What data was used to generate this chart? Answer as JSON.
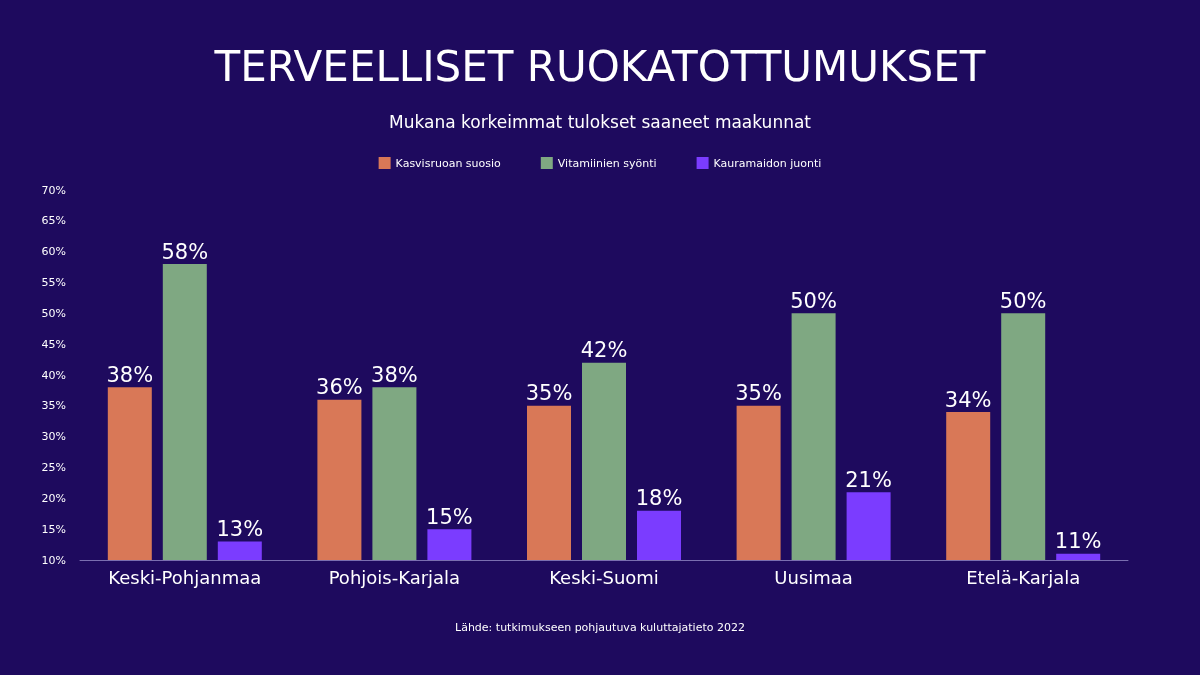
{
  "chart_data": {
    "type": "bar",
    "title": "TERVEELLISET RUOKATOTTUMUKSET",
    "subtitle": "Mukana korkeimmat tulokset saaneet maakunnat",
    "categories": [
      "Keski-Pohjanmaa",
      "Pohjois-Karjala",
      "Keski-Suomi",
      "Uusimaa",
      "Etelä-Karjala"
    ],
    "series": [
      {
        "name": "Kasvisruoan suosio",
        "color": "#d97857",
        "values": [
          38,
          36,
          35,
          35,
          34
        ],
        "value_labels": [
          "38%",
          "36%",
          "35%",
          "35%",
          "34%"
        ]
      },
      {
        "name": "Vitamiinien syönti",
        "color": "#7fa882",
        "values": [
          58,
          38,
          42,
          50,
          50
        ],
        "value_labels": [
          "58%",
          "38%",
          "42%",
          "50%",
          "50%"
        ]
      },
      {
        "name": "Kauramaidon juonti",
        "color": "#7b3cff",
        "values": [
          13,
          15,
          18,
          21,
          11
        ],
        "value_labels": [
          "13%",
          "15%",
          "18%",
          "21%",
          "11%"
        ]
      }
    ],
    "ylim": [
      10,
      70
    ],
    "yticks": [
      {
        "value": 10,
        "label": "10%"
      },
      {
        "value": 15,
        "label": "15%"
      },
      {
        "value": 20,
        "label": "20%"
      },
      {
        "value": 25,
        "label": "25%"
      },
      {
        "value": 30,
        "label": "30%"
      },
      {
        "value": 35,
        "label": "35%"
      },
      {
        "value": 40,
        "label": "40%"
      },
      {
        "value": 45,
        "label": "45%"
      },
      {
        "value": 50,
        "label": "50%"
      },
      {
        "value": 55,
        "label": "55%"
      },
      {
        "value": 60,
        "label": "60%"
      },
      {
        "value": 65,
        "label": "65%"
      },
      {
        "value": 70,
        "label": "70%"
      }
    ],
    "grid": false,
    "legend": "top",
    "annotations": [
      "Lähde: tutkimukseen pohjautuva kuluttajatieto 2022"
    ]
  }
}
